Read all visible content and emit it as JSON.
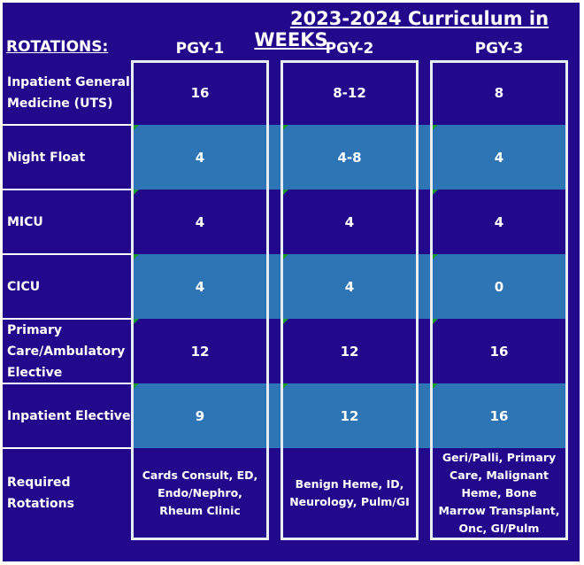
{
  "title": "2023-2024 Curriculum in WEEKS",
  "rotations_header": "ROTATIONS:",
  "columns": [
    "PGY-1",
    "PGY-2",
    "PGY-3"
  ],
  "rows": [
    {
      "label": "Inpatient General Medicine (UTS)",
      "values": [
        "16",
        "8-12",
        "8"
      ]
    },
    {
      "label": "Night Float",
      "values": [
        "4",
        "4-8",
        "4"
      ]
    },
    {
      "label": "MICU",
      "values": [
        "4",
        "4",
        "4"
      ]
    },
    {
      "label": "CICU",
      "values": [
        "4",
        "4",
        "0"
      ]
    },
    {
      "label": "Primary Care/Ambulatory Elective",
      "values": [
        "12",
        "12",
        "16"
      ]
    },
    {
      "label": "Inpatient Elective",
      "values": [
        "9",
        "12",
        "16"
      ]
    },
    {
      "label": "Required Rotations",
      "values": [
        "Cards Consult, ED, Endo/Nephro, Rheum Clinic",
        "Benign Heme, ID, Neurology, Pulm/GI",
        "Geri/Palli, Primary Care, Malignant Heme, Bone Marrow Transplant,  Onc, GI/Pulm"
      ]
    }
  ],
  "colors": {
    "background": "#22098b",
    "band": "#2e75b6",
    "border": "#e8ecf5",
    "comment_marker": "#1a9a2a"
  }
}
